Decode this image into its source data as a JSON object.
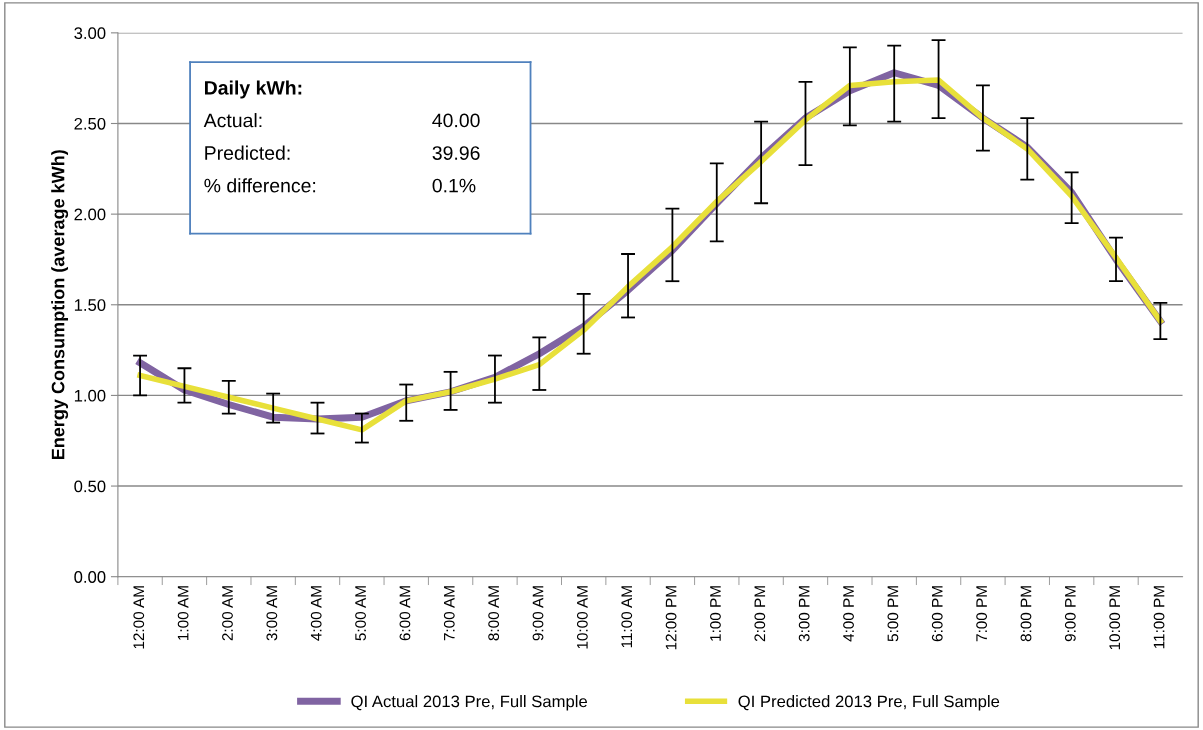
{
  "chart_data": {
    "type": "line",
    "ylabel": "Energy Consumption (average kWh)",
    "categories": [
      "12:00 AM",
      "1:00 AM",
      "2:00 AM",
      "3:00 AM",
      "4:00 AM",
      "5:00 AM",
      "6:00 AM",
      "7:00 AM",
      "8:00 AM",
      "9:00 AM",
      "10:00 AM",
      "11:00 AM",
      "12:00 PM",
      "1:00 PM",
      "2:00 PM",
      "3:00 PM",
      "4:00 PM",
      "5:00 PM",
      "6:00 PM",
      "7:00 PM",
      "8:00 PM",
      "9:00 PM",
      "10:00 PM",
      "11:00 PM"
    ],
    "series": [
      {
        "name": "QI Actual 2013 Pre, Full Sample",
        "color": "#8064a2",
        "values": [
          1.18,
          1.03,
          0.95,
          0.88,
          0.87,
          0.88,
          0.97,
          1.02,
          1.1,
          1.23,
          1.38,
          1.58,
          1.8,
          2.06,
          2.31,
          2.53,
          2.68,
          2.78,
          2.71,
          2.53,
          2.37,
          2.12,
          1.75,
          1.41
        ],
        "errors": [
          [
            1.0,
            1.22
          ],
          [
            0.96,
            1.15
          ],
          [
            0.9,
            1.08
          ],
          [
            0.85,
            1.01
          ],
          [
            0.79,
            0.96
          ],
          [
            0.74,
            0.9
          ],
          [
            0.86,
            1.06
          ],
          [
            0.92,
            1.13
          ],
          [
            0.96,
            1.22
          ],
          [
            1.03,
            1.32
          ],
          [
            1.23,
            1.56
          ],
          [
            1.43,
            1.78
          ],
          [
            1.63,
            2.03
          ],
          [
            1.85,
            2.28
          ],
          [
            2.06,
            2.51
          ],
          [
            2.27,
            2.73
          ],
          [
            2.49,
            2.92
          ],
          [
            2.51,
            2.93
          ],
          [
            2.53,
            2.96
          ],
          [
            2.35,
            2.71
          ],
          [
            2.19,
            2.53
          ],
          [
            1.95,
            2.23
          ],
          [
            1.63,
            1.87
          ],
          [
            1.31,
            1.51
          ]
        ]
      },
      {
        "name": "QI Predicted 2013 Pre, Full Sample",
        "color": "#e8e03a",
        "values": [
          1.11,
          1.05,
          0.99,
          0.93,
          0.87,
          0.81,
          0.97,
          1.02,
          1.09,
          1.17,
          1.36,
          1.6,
          1.82,
          2.07,
          2.29,
          2.52,
          2.71,
          2.73,
          2.74,
          2.53,
          2.36,
          2.1,
          1.76,
          1.41
        ]
      }
    ],
    "ylim": [
      0,
      3
    ],
    "yticks": [
      {
        "value": 0,
        "label": "0.00"
      },
      {
        "value": 0.5,
        "label": "0.50"
      },
      {
        "value": 1,
        "label": "1.00"
      },
      {
        "value": 1.5,
        "label": "1.50"
      },
      {
        "value": 2,
        "label": "2.00"
      },
      {
        "value": 2.5,
        "label": "2.50"
      },
      {
        "value": 3,
        "label": "3.00"
      }
    ],
    "grid": "y",
    "legend": "bottom",
    "marker": "none",
    "line_style": "solid",
    "annotations": [
      "Daily kWh:",
      "Actual:",
      "40.00",
      "Predicted:",
      "39.96",
      "% difference:",
      "0.1%"
    ]
  }
}
